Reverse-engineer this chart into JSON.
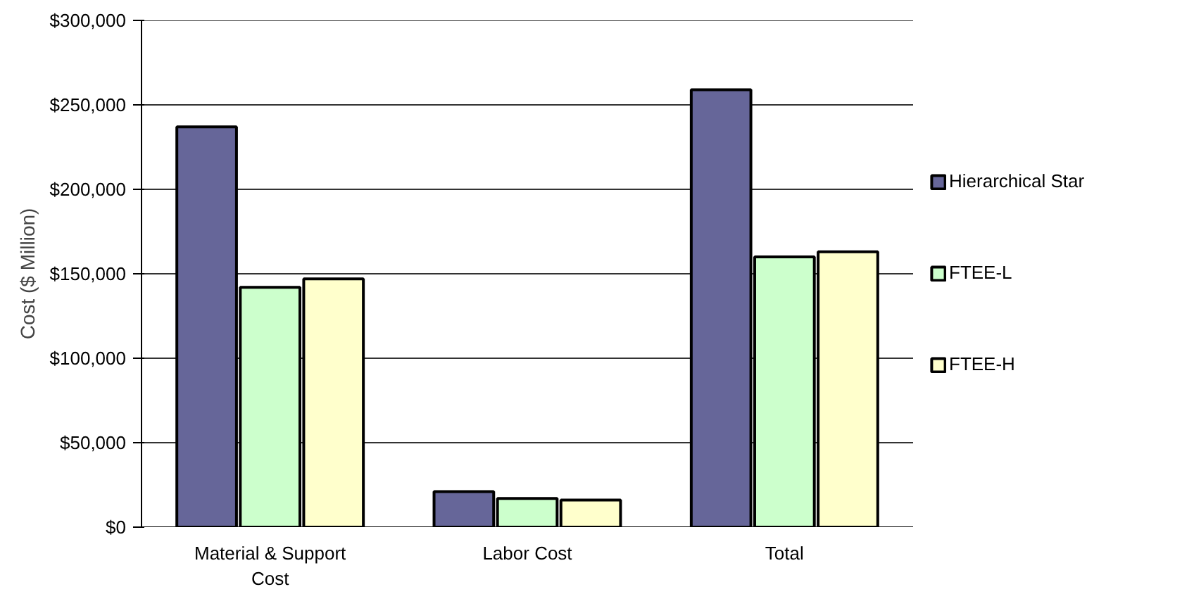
{
  "chart_data": {
    "type": "bar",
    "ylabel": "Cost ($ Million)",
    "categories": [
      "Material & Support Cost",
      "Labor Cost",
      "Total"
    ],
    "series": [
      {
        "name": "Hierarchical Star",
        "color": "#666699",
        "values": [
          237000,
          21000,
          259000
        ]
      },
      {
        "name": "FTEE-L",
        "color": "#ccffcc",
        "values": [
          142000,
          17000,
          160000
        ]
      },
      {
        "name": "FTEE-H",
        "color": "#ffffcc",
        "values": [
          147000,
          16000,
          163000
        ]
      }
    ],
    "ylim": [
      0,
      300000
    ],
    "yticks": [
      {
        "value": 0,
        "label": "$0"
      },
      {
        "value": 50000,
        "label": "$50,000"
      },
      {
        "value": 100000,
        "label": "$100,000"
      },
      {
        "value": 150000,
        "label": "$150,000"
      },
      {
        "value": 200000,
        "label": "$200,000"
      },
      {
        "value": 250000,
        "label": "$250,000"
      },
      {
        "value": 300000,
        "label": "$300,000"
      }
    ],
    "grid": "y",
    "legend": "right"
  }
}
